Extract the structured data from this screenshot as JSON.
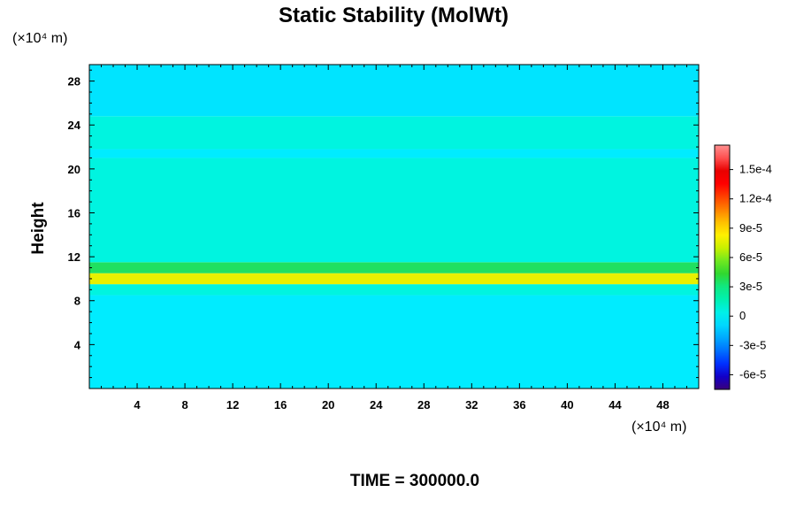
{
  "chart_data": {
    "type": "heatmap",
    "title": "Static Stability (MolWt)",
    "xlabel": "",
    "ylabel": "Height",
    "x_unit": "(×10⁴ m)",
    "y_unit": "(×10⁴ m)",
    "xlim": [
      0,
      51
    ],
    "ylim": [
      0,
      29.5
    ],
    "x_ticks": [
      4,
      8,
      12,
      16,
      20,
      24,
      28,
      32,
      36,
      40,
      44,
      48
    ],
    "x_tick_labels": [
      "4",
      "8",
      "12",
      "16",
      "20",
      "24",
      "28",
      "32",
      "36",
      "40",
      "44",
      "48"
    ],
    "y_ticks": [
      4,
      8,
      12,
      16,
      20,
      24,
      28
    ],
    "y_tick_labels": [
      "4",
      "8",
      "12",
      "16",
      "20",
      "24",
      "28"
    ],
    "colorbar": {
      "range": [
        -7.5e-05,
        0.000175
      ],
      "ticks": [
        0.00015,
        0.00012,
        9e-05,
        6e-05,
        3e-05,
        0,
        -3e-05,
        -6e-05
      ],
      "tick_labels": [
        "1.5e-4",
        "1.2e-4",
        "9e-5",
        "6e-5",
        "3e-5",
        "0",
        "-3e-5",
        "-6e-5"
      ],
      "colors_low_to_high": [
        "#3a007a",
        "#1200c8",
        "#0030ff",
        "#0070ff",
        "#00a8ff",
        "#00d8ff",
        "#00f0e8",
        "#00f0b0",
        "#10e880",
        "#30d830",
        "#70e820",
        "#c8f000",
        "#fff000",
        "#ffc000",
        "#ff8000",
        "#ff4000",
        "#ff0000",
        "#e80000",
        "#ff5050",
        "#ff9090"
      ]
    },
    "field_bands": [
      {
        "y_from": 0.0,
        "y_to": 8.5,
        "value": 1e-05,
        "color": "#00ecff"
      },
      {
        "y_from": 8.5,
        "y_to": 9.5,
        "value": 2e-05,
        "color": "#00f4e0"
      },
      {
        "y_from": 9.5,
        "y_to": 10.5,
        "value": 9e-05,
        "color": "#e8f000"
      },
      {
        "y_from": 10.5,
        "y_to": 11.5,
        "value": 4e-05,
        "color": "#20e060"
      },
      {
        "y_from": 11.5,
        "y_to": 21.0,
        "value": 2e-05,
        "color": "#00f4e0"
      },
      {
        "y_from": 21.0,
        "y_to": 21.8,
        "value": 1e-05,
        "color": "#00ecff"
      },
      {
        "y_from": 21.8,
        "y_to": 24.8,
        "value": 2e-05,
        "color": "#00f4e0"
      },
      {
        "y_from": 24.8,
        "y_to": 29.5,
        "value": 5e-06,
        "color": "#00e4ff"
      }
    ]
  },
  "footer": {
    "time_label": "TIME = 300000.0"
  }
}
